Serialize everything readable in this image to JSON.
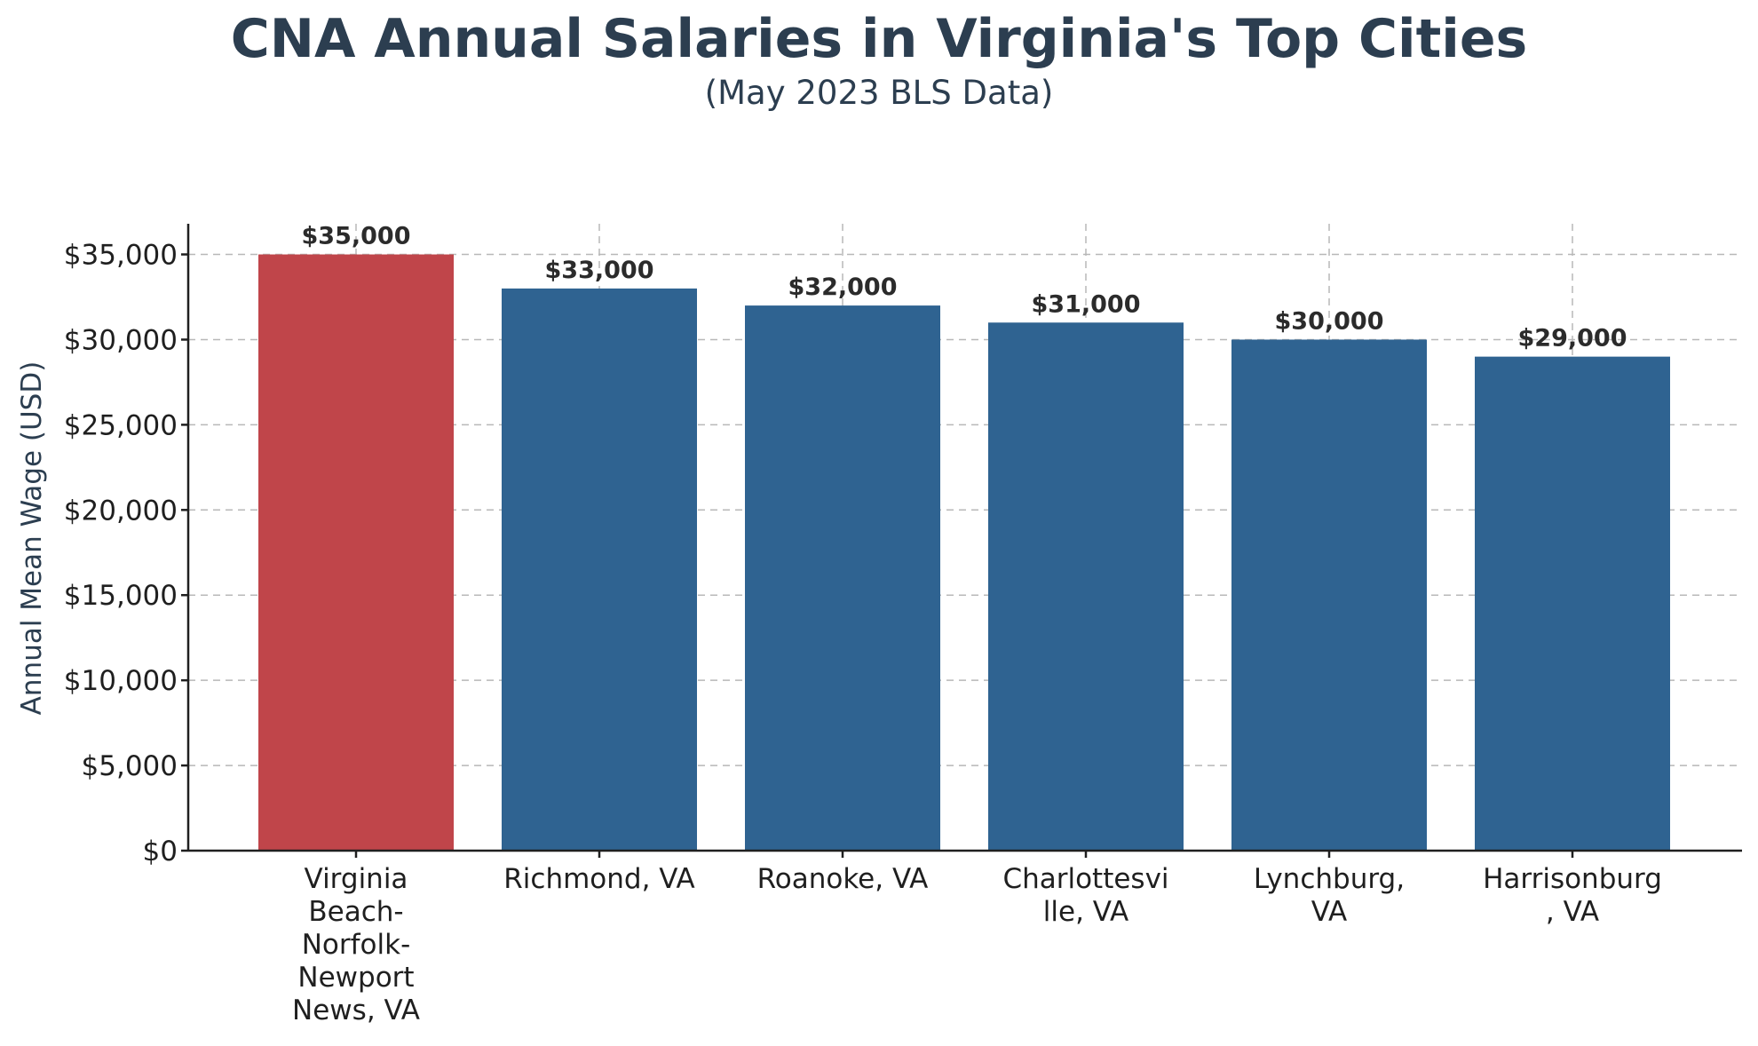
{
  "chart_data": {
    "type": "bar",
    "title": "CNA Annual Salaries in Virginia's Top Cities",
    "subtitle": "(May 2023 BLS Data)",
    "xlabel": "",
    "ylabel": "Annual Mean Wage (USD)",
    "categories": [
      "Virginia Beach-Norfolk-Newport News, VA",
      "Richmond, VA",
      "Roanoke, VA",
      "Charlottesville, VA",
      "Lynchburg, VA",
      "Harrisonburg, VA"
    ],
    "category_label_lines": [
      [
        "Virginia",
        "Beach-",
        "Norfolk-",
        "Newport",
        "News, VA"
      ],
      [
        "Richmond, VA"
      ],
      [
        "Roanoke, VA"
      ],
      [
        "Charlottesvi",
        "lle, VA"
      ],
      [
        "Lynchburg,",
        "VA"
      ],
      [
        "Harrisonburg",
        ", VA"
      ]
    ],
    "values": [
      35000,
      33000,
      32000,
      31000,
      30000,
      29000
    ],
    "value_labels": [
      "$35,000",
      "$33,000",
      "$32,000",
      "$31,000",
      "$30,000",
      "$29,000"
    ],
    "bar_colors": [
      "#c0454a",
      "#2f6391",
      "#2f6391",
      "#2f6391",
      "#2f6391",
      "#2f6391"
    ],
    "ylim": [
      0,
      36800
    ],
    "yticks": [
      0,
      5000,
      10000,
      15000,
      20000,
      25000,
      30000,
      35000
    ],
    "ytick_labels": [
      "$0",
      "$5,000",
      "$10,000",
      "$15,000",
      "$20,000",
      "$25,000",
      "$30,000",
      "$35,000"
    ],
    "grid": true,
    "legend": "none",
    "colors": {
      "title": "#2c3e50",
      "highlight": "#c0454a",
      "bar": "#2f6391"
    }
  }
}
